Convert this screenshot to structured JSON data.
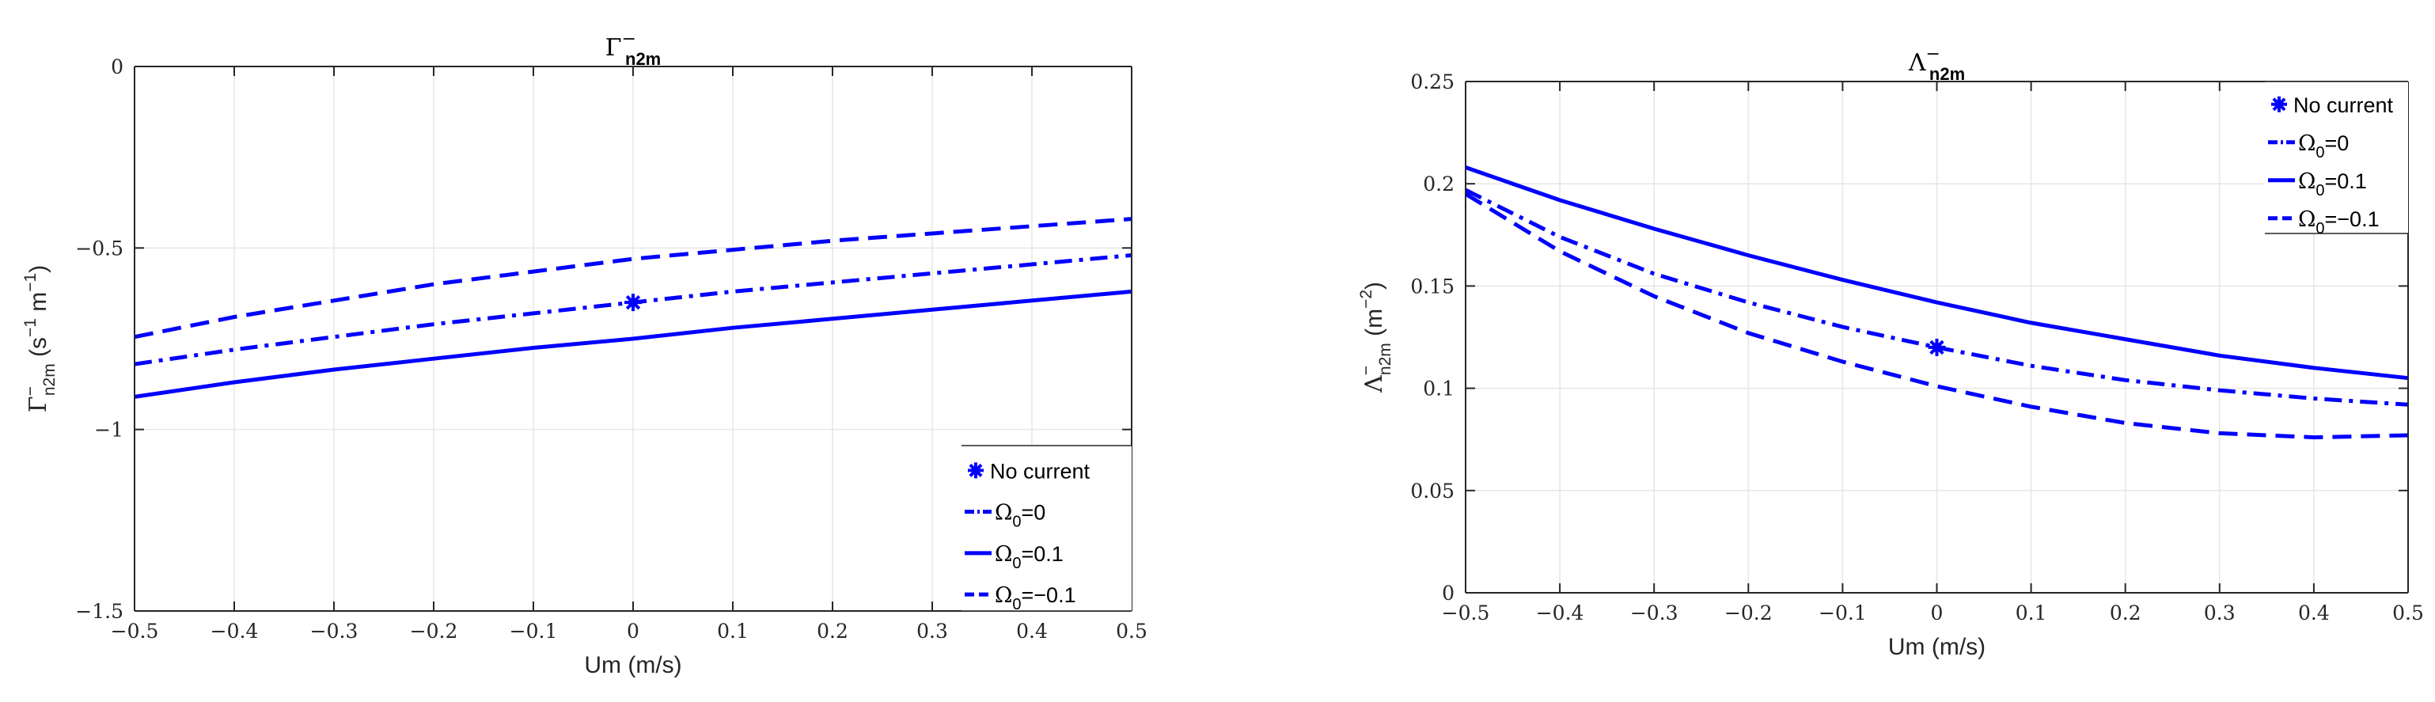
{
  "chart_data": [
    {
      "type": "line",
      "title": {
        "main": "Γ",
        "sub": "n2m",
        "sup": "−"
      },
      "xlabel": "Um (m/s)",
      "ylabel": {
        "main": "Γ",
        "sub": "n2m",
        "sup": "−",
        "unit_open": " (s",
        "unit_mid": " m",
        "unit_close": ")",
        "unit_sup1": "−1",
        "unit_sup2": "−1"
      },
      "xlim": [
        -0.5,
        0.5
      ],
      "ylim": [
        -1.5,
        0
      ],
      "xticks": [
        -0.5,
        -0.4,
        -0.3,
        -0.2,
        -0.1,
        0,
        0.1,
        0.2,
        0.3,
        0.4,
        0.5
      ],
      "xtick_labels": [
        "−0.5",
        "−0.4",
        "−0.3",
        "−0.2",
        "−0.1",
        "0",
        "0.1",
        "0.2",
        "0.3",
        "0.4",
        "0.5"
      ],
      "yticks": [
        -1.5,
        -1,
        -0.5,
        0
      ],
      "ytick_labels": [
        "−1.5",
        "−1",
        "−0.5",
        "0"
      ],
      "grid": true,
      "legend_position": "bottom-right",
      "color": "#0000ff",
      "x": [
        -0.5,
        -0.4,
        -0.3,
        -0.2,
        -0.1,
        0,
        0.1,
        0.2,
        0.3,
        0.4,
        0.5
      ],
      "series": [
        {
          "legend": "Ω₀=0",
          "style": "dashdot",
          "values": [
            -0.82,
            -0.78,
            -0.745,
            -0.71,
            -0.68,
            -0.65,
            -0.62,
            -0.595,
            -0.57,
            -0.545,
            -0.52
          ]
        },
        {
          "legend": "Ω₀=0.1",
          "style": "solid",
          "values": [
            -0.91,
            -0.87,
            -0.835,
            -0.805,
            -0.775,
            -0.75,
            -0.72,
            -0.695,
            -0.67,
            -0.645,
            -0.62
          ]
        },
        {
          "legend": "Ω₀=−0.1",
          "style": "dashed",
          "values": [
            -0.745,
            -0.69,
            -0.645,
            -0.6,
            -0.565,
            -0.53,
            -0.505,
            -0.48,
            -0.46,
            -0.44,
            -0.42
          ]
        }
      ],
      "points": [
        {
          "legend": "No current",
          "x": 0,
          "y": -0.65
        }
      ]
    },
    {
      "type": "line",
      "title": {
        "main": "Λ",
        "sub": "n2m",
        "sup": "−"
      },
      "xlabel": "Um (m/s)",
      "ylabel": {
        "main": "Λ",
        "sub": "n2m",
        "sup": "−",
        "unit_open": " (m",
        "unit_mid": "",
        "unit_close": ")",
        "unit_sup1": "−2",
        "unit_sup2": ""
      },
      "xlim": [
        -0.5,
        0.5
      ],
      "ylim": [
        0,
        0.25
      ],
      "xticks": [
        -0.5,
        -0.4,
        -0.3,
        -0.2,
        -0.1,
        0,
        0.1,
        0.2,
        0.3,
        0.4,
        0.5
      ],
      "xtick_labels": [
        "−0.5",
        "−0.4",
        "−0.3",
        "−0.2",
        "−0.1",
        "0",
        "0.1",
        "0.2",
        "0.3",
        "0.4",
        "0.5"
      ],
      "yticks": [
        0,
        0.05,
        0.1,
        0.15,
        0.2,
        0.25
      ],
      "ytick_labels": [
        "0",
        "0.05",
        "0.1",
        "0.15",
        "0.2",
        "0.25"
      ],
      "grid": true,
      "legend_position": "top-right",
      "color": "#0000ff",
      "x": [
        -0.5,
        -0.4,
        -0.3,
        -0.2,
        -0.1,
        0,
        0.1,
        0.2,
        0.3,
        0.4,
        0.5
      ],
      "series": [
        {
          "legend": "Ω₀=0",
          "style": "dashdot",
          "values": [
            0.197,
            0.174,
            0.156,
            0.142,
            0.13,
            0.12,
            0.111,
            0.104,
            0.099,
            0.095,
            0.092
          ]
        },
        {
          "legend": "Ω₀=0.1",
          "style": "solid",
          "values": [
            0.208,
            0.192,
            0.178,
            0.165,
            0.153,
            0.142,
            0.132,
            0.124,
            0.116,
            0.11,
            0.105
          ]
        },
        {
          "legend": "Ω₀=−0.1",
          "style": "dashed",
          "values": [
            0.195,
            0.167,
            0.145,
            0.127,
            0.113,
            0.101,
            0.091,
            0.083,
            0.078,
            0.076,
            0.077
          ]
        }
      ],
      "points": [
        {
          "legend": "No current",
          "x": 0,
          "y": 0.12
        }
      ]
    }
  ],
  "legend": {
    "no_current": "No current",
    "entries": [
      {
        "base": "Ω",
        "sub": "0",
        "rest": "=0"
      },
      {
        "base": "Ω",
        "sub": "0",
        "rest": "=0.1"
      },
      {
        "base": "Ω",
        "sub": "0",
        "rest": "=−0.1"
      }
    ]
  }
}
